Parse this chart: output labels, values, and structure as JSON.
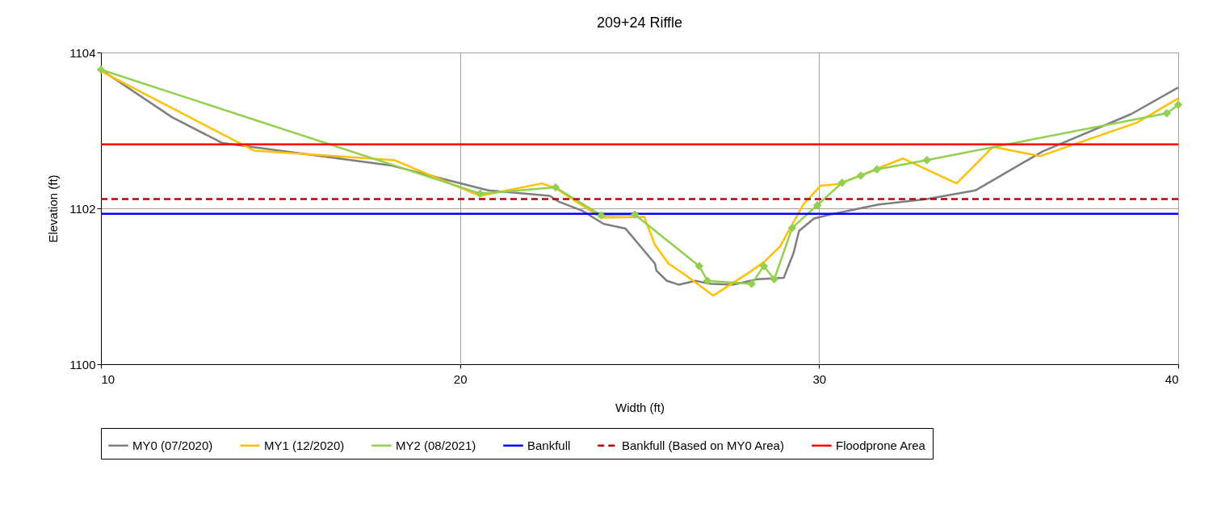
{
  "chart_data": {
    "type": "line",
    "title": "209+24 Riffle",
    "xlabel": "Width (ft)",
    "ylabel": "Elevation (ft)",
    "xlim": [
      10,
      40
    ],
    "xticks": [
      10,
      20,
      30,
      40
    ],
    "ylim": [
      1100,
      1104
    ],
    "yticks": [
      1100,
      1102,
      1104
    ],
    "grid": true,
    "legend": "bottom",
    "series": [
      {
        "name": "MY0 (07/2020)",
        "color": "#7f7f7f",
        "marker": "none",
        "x": [
          10,
          11.98,
          13.37,
          18.1,
          19.5,
          20.79,
          22.5,
          22.73,
          23.4,
          24.0,
          24.61,
          25.43,
          25.47,
          25.76,
          26.1,
          26.55,
          27.0,
          27.6,
          28.28,
          29.02,
          29.11,
          29.29,
          29.44,
          29.86,
          30.3,
          31.66,
          33.0,
          34.35,
          36.22,
          38.69,
          40
        ],
        "values": [
          1103.78,
          1103.17,
          1102.84,
          1102.55,
          1102.38,
          1102.23,
          1102.16,
          1102.09,
          1101.97,
          1101.8,
          1101.74,
          1101.29,
          1101.2,
          1101.07,
          1101.02,
          1101.07,
          1101.03,
          1101.02,
          1101.09,
          1101.11,
          1101.22,
          1101.43,
          1101.71,
          1101.87,
          1101.92,
          1102.05,
          1102.12,
          1102.23,
          1102.73,
          1103.21,
          1103.55
        ]
      },
      {
        "name": "MY1 (12/2020)",
        "color": "#ffc000",
        "marker": "none",
        "x": [
          10,
          14.27,
          18.16,
          20.56,
          22.28,
          22.66,
          23.93,
          25.13,
          25.43,
          25.81,
          26.26,
          27.05,
          28.06,
          28.46,
          28.91,
          29.56,
          30.04,
          30.53,
          32.33,
          33.83,
          34.84,
          36.15,
          38.85,
          40
        ],
        "values": [
          1103.76,
          1102.74,
          1102.62,
          1102.16,
          1102.32,
          1102.26,
          1101.88,
          1101.89,
          1101.53,
          1101.29,
          1101.15,
          1100.88,
          1101.18,
          1101.31,
          1101.51,
          1102.05,
          1102.29,
          1102.31,
          1102.64,
          1102.32,
          1102.79,
          1102.67,
          1103.1,
          1103.41
        ]
      },
      {
        "name": "MY2 (08/2021)",
        "color": "#92d050",
        "marker": "diamond",
        "x": [
          10,
          20.56,
          22.66,
          23.93,
          24.87,
          26.66,
          26.89,
          28.12,
          28.46,
          28.75,
          29.25,
          29.95,
          30.64,
          31.16,
          31.61,
          33.0,
          39.68,
          40
        ],
        "values": [
          1103.78,
          1102.19,
          1102.27,
          1101.91,
          1101.92,
          1101.26,
          1101.07,
          1101.03,
          1101.26,
          1101.09,
          1101.75,
          1102.04,
          1102.33,
          1102.42,
          1102.5,
          1102.62,
          1103.22,
          1103.33
        ]
      }
    ],
    "ref_lines": [
      {
        "axis": "y",
        "value": 1101.93,
        "label": "Bankfull",
        "color": "#0000ff",
        "line_style": "solid"
      },
      {
        "axis": "y",
        "value": 1102.12,
        "label": "Bankfull (Based on MY0 Area)",
        "color": "#c00000",
        "line_style": "dashed"
      },
      {
        "axis": "y",
        "value": 1102.82,
        "label": "Floodprone Area",
        "color": "#ff0000",
        "line_style": "solid"
      }
    ]
  }
}
